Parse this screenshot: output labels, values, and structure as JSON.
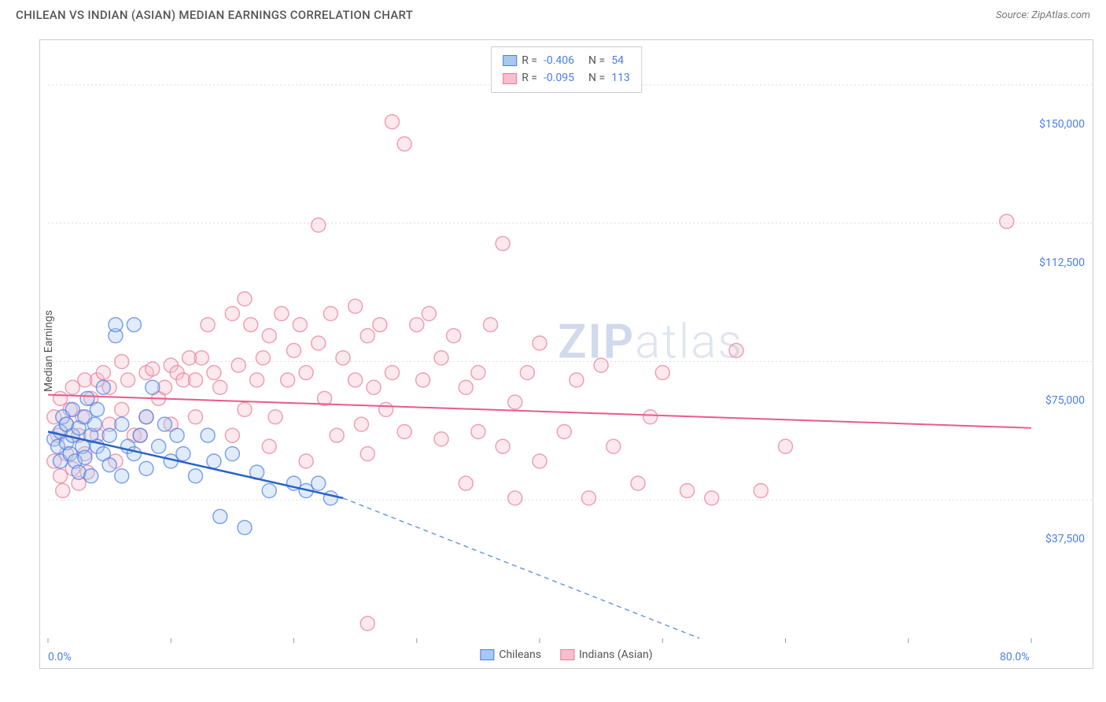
{
  "header": {
    "title": "CHILEAN VS INDIAN (ASIAN) MEDIAN EARNINGS CORRELATION CHART",
    "source": "Source: ZipAtlas.com"
  },
  "watermark": {
    "zip": "ZIP",
    "atlas": "atlas"
  },
  "chart": {
    "type": "scatter",
    "ylabel": "Median Earnings",
    "background_color": "#ffffff",
    "border_color": "#cccccc",
    "grid_color": "#dddddd",
    "label_fontsize": 14,
    "title_fontsize": 15,
    "text_color": "#555555",
    "value_color": "#4a7ee8",
    "xlim": [
      0,
      80
    ],
    "ylim": [
      0,
      160000
    ],
    "x_ticks": [
      0,
      10,
      20,
      30,
      40,
      50,
      60,
      70,
      80
    ],
    "x_tick_labels_visible": {
      "0": "0.0%",
      "80": "80.0%"
    },
    "y_ticks": [
      37500,
      75000,
      112500,
      150000
    ],
    "y_tick_labels": [
      "$37,500",
      "$75,000",
      "$112,500",
      "$150,000"
    ],
    "marker_radius": 9,
    "marker_stroke_width": 1.5,
    "marker_fill_opacity": 0.35,
    "series": {
      "chileans": {
        "label": "Chileans",
        "fill": "#a8c8f0",
        "stroke": "#4a7ee8",
        "R": "-0.406",
        "N": "54",
        "trend": {
          "x1": 0,
          "y1": 56000,
          "x2": 24,
          "y2": 38000,
          "color": "#2962c8",
          "width": 2.5
        },
        "trend_dash": {
          "x1": 24,
          "y1": 38000,
          "x2": 53,
          "y2": 0,
          "color": "#6a9ae0",
          "dash": "6,5",
          "width": 1.5
        },
        "points": [
          [
            0.5,
            54000
          ],
          [
            0.8,
            52000
          ],
          [
            1,
            56000
          ],
          [
            1,
            48000
          ],
          [
            1.2,
            60000
          ],
          [
            1.5,
            53000
          ],
          [
            1.5,
            58000
          ],
          [
            1.8,
            50000
          ],
          [
            2,
            55000
          ],
          [
            2,
            62000
          ],
          [
            2.2,
            48000
          ],
          [
            2.5,
            57000
          ],
          [
            2.5,
            45000
          ],
          [
            2.8,
            52000
          ],
          [
            3,
            60000
          ],
          [
            3,
            49000
          ],
          [
            3.2,
            65000
          ],
          [
            3.5,
            55000
          ],
          [
            3.5,
            44000
          ],
          [
            3.8,
            58000
          ],
          [
            4,
            52000
          ],
          [
            4,
            62000
          ],
          [
            4.5,
            50000
          ],
          [
            4.5,
            68000
          ],
          [
            5,
            55000
          ],
          [
            5,
            47000
          ],
          [
            5.5,
            82000
          ],
          [
            5.5,
            85000
          ],
          [
            6,
            58000
          ],
          [
            6,
            44000
          ],
          [
            6.5,
            52000
          ],
          [
            7,
            85000
          ],
          [
            7,
            50000
          ],
          [
            7.5,
            55000
          ],
          [
            8,
            60000
          ],
          [
            8,
            46000
          ],
          [
            8.5,
            68000
          ],
          [
            9,
            52000
          ],
          [
            9.5,
            58000
          ],
          [
            10,
            48000
          ],
          [
            10.5,
            55000
          ],
          [
            11,
            50000
          ],
          [
            12,
            44000
          ],
          [
            13,
            55000
          ],
          [
            13.5,
            48000
          ],
          [
            14,
            33000
          ],
          [
            15,
            50000
          ],
          [
            16,
            30000
          ],
          [
            17,
            45000
          ],
          [
            18,
            40000
          ],
          [
            20,
            42000
          ],
          [
            21,
            40000
          ],
          [
            23,
            38000
          ],
          [
            22,
            42000
          ]
        ]
      },
      "indians": {
        "label": "Indians (Asian)",
        "fill": "#f5c0cc",
        "stroke": "#e87a9a",
        "R": "-0.095",
        "N": "113",
        "trend": {
          "x1": 0,
          "y1": 66000,
          "x2": 80,
          "y2": 57000,
          "color": "#e85a8a",
          "width": 2
        },
        "points": [
          [
            0.5,
            60000
          ],
          [
            0.5,
            48000
          ],
          [
            0.8,
            55000
          ],
          [
            1,
            44000
          ],
          [
            1,
            65000
          ],
          [
            1.2,
            40000
          ],
          [
            1.5,
            58000
          ],
          [
            1.5,
            50000
          ],
          [
            1.8,
            62000
          ],
          [
            2,
            46000
          ],
          [
            2,
            68000
          ],
          [
            2.5,
            55000
          ],
          [
            2.5,
            42000
          ],
          [
            2.8,
            60000
          ],
          [
            3,
            50000
          ],
          [
            3,
            70000
          ],
          [
            3.2,
            45000
          ],
          [
            3.5,
            65000
          ],
          [
            4,
            70000
          ],
          [
            4,
            55000
          ],
          [
            4.5,
            72000
          ],
          [
            5,
            68000
          ],
          [
            5,
            58000
          ],
          [
            5.5,
            48000
          ],
          [
            6,
            75000
          ],
          [
            6,
            62000
          ],
          [
            6.5,
            70000
          ],
          [
            7,
            55000
          ],
          [
            7.5,
            55000
          ],
          [
            8,
            72000
          ],
          [
            8,
            60000
          ],
          [
            8.5,
            73000
          ],
          [
            9,
            65000
          ],
          [
            9.5,
            68000
          ],
          [
            10,
            74000
          ],
          [
            10,
            58000
          ],
          [
            10.5,
            72000
          ],
          [
            11,
            70000
          ],
          [
            11.5,
            76000
          ],
          [
            12,
            70000
          ],
          [
            12,
            60000
          ],
          [
            12.5,
            76000
          ],
          [
            13,
            85000
          ],
          [
            13.5,
            72000
          ],
          [
            14,
            68000
          ],
          [
            15,
            88000
          ],
          [
            15,
            55000
          ],
          [
            15.5,
            74000
          ],
          [
            16,
            92000
          ],
          [
            16,
            62000
          ],
          [
            16.5,
            85000
          ],
          [
            17,
            70000
          ],
          [
            17.5,
            76000
          ],
          [
            18,
            82000
          ],
          [
            18,
            52000
          ],
          [
            18.5,
            60000
          ],
          [
            19,
            88000
          ],
          [
            19.5,
            70000
          ],
          [
            20,
            78000
          ],
          [
            20.5,
            85000
          ],
          [
            21,
            72000
          ],
          [
            21,
            48000
          ],
          [
            22,
            80000
          ],
          [
            22,
            112000
          ],
          [
            22.5,
            65000
          ],
          [
            23,
            88000
          ],
          [
            23.5,
            55000
          ],
          [
            24,
            76000
          ],
          [
            25,
            70000
          ],
          [
            25,
            90000
          ],
          [
            25.5,
            58000
          ],
          [
            26,
            82000
          ],
          [
            26,
            50000
          ],
          [
            26.5,
            68000
          ],
          [
            27,
            85000
          ],
          [
            27.5,
            62000
          ],
          [
            28,
            140000
          ],
          [
            28,
            72000
          ],
          [
            29,
            134000
          ],
          [
            29,
            56000
          ],
          [
            30,
            85000
          ],
          [
            30.5,
            70000
          ],
          [
            31,
            88000
          ],
          [
            32,
            54000
          ],
          [
            32,
            76000
          ],
          [
            33,
            82000
          ],
          [
            34,
            68000
          ],
          [
            34,
            42000
          ],
          [
            35,
            56000
          ],
          [
            35,
            72000
          ],
          [
            36,
            85000
          ],
          [
            37,
            52000
          ],
          [
            37,
            107000
          ],
          [
            38,
            38000
          ],
          [
            38,
            64000
          ],
          [
            39,
            72000
          ],
          [
            40,
            48000
          ],
          [
            40,
            80000
          ],
          [
            42,
            56000
          ],
          [
            43,
            70000
          ],
          [
            44,
            38000
          ],
          [
            45,
            74000
          ],
          [
            46,
            52000
          ],
          [
            48,
            42000
          ],
          [
            49,
            60000
          ],
          [
            50,
            72000
          ],
          [
            52,
            40000
          ],
          [
            54,
            38000
          ],
          [
            56,
            78000
          ],
          [
            58,
            40000
          ],
          [
            60,
            52000
          ],
          [
            26,
            4000
          ],
          [
            78,
            113000
          ]
        ]
      }
    },
    "legend_bottom": [
      {
        "label": "Chileans",
        "fill": "#a8c8f0",
        "stroke": "#4a7ee8"
      },
      {
        "label": "Indians (Asian)",
        "fill": "#f5c0cc",
        "stroke": "#e87a9a"
      }
    ]
  }
}
